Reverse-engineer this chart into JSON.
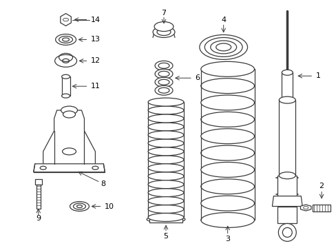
{
  "background_color": "#ffffff",
  "line_color": "#3a3a3a",
  "figsize": [
    4.89,
    3.6
  ],
  "dpi": 100,
  "lw": 0.9
}
